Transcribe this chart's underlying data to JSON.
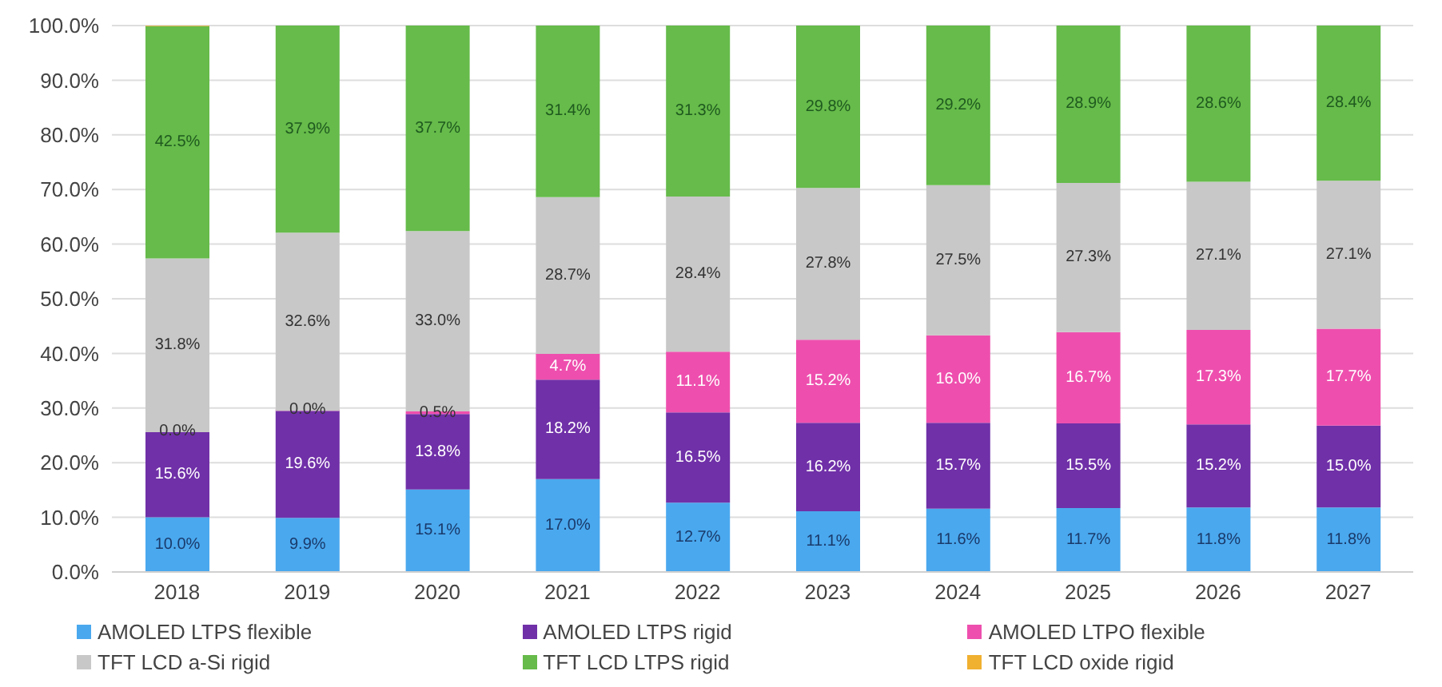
{
  "chart_data": {
    "type": "bar",
    "stacked": true,
    "categories": [
      "2018",
      "2019",
      "2020",
      "2021",
      "2022",
      "2023",
      "2024",
      "2025",
      "2026",
      "2027"
    ],
    "series": [
      {
        "name": "AMOLED LTPS flexible",
        "color": "#4aa8ee",
        "values": [
          10.0,
          9.9,
          15.1,
          17.0,
          12.7,
          11.1,
          11.6,
          11.7,
          11.8,
          11.8
        ],
        "value_labels": [
          "10.0%",
          "9.9%",
          "15.1%",
          "17.0%",
          "12.7%",
          "11.1%",
          "11.6%",
          "11.7%",
          "11.8%",
          "11.8%"
        ]
      },
      {
        "name": "AMOLED LTPS rigid",
        "color": "#7030a8",
        "values": [
          15.6,
          19.6,
          13.8,
          18.2,
          16.5,
          16.2,
          15.7,
          15.5,
          15.2,
          15.0
        ],
        "value_labels": [
          "15.6%",
          "19.6%",
          "13.8%",
          "18.2%",
          "16.5%",
          "16.2%",
          "15.7%",
          "15.5%",
          "15.2%",
          "15.0%"
        ]
      },
      {
        "name": "AMOLED LTPO flexible",
        "color": "#ee4fae",
        "values": [
          0.0,
          0.0,
          0.5,
          4.7,
          11.1,
          15.2,
          16.0,
          16.7,
          17.3,
          17.7
        ],
        "value_labels": [
          "0.0%",
          "0.0%",
          "0.5%",
          "4.7%",
          "11.1%",
          "15.2%",
          "16.0%",
          "16.7%",
          "17.3%",
          "17.7%"
        ]
      },
      {
        "name": "TFT LCD a-Si rigid",
        "color": "#c8c8c8",
        "values": [
          31.8,
          32.6,
          33.0,
          28.7,
          28.4,
          27.8,
          27.5,
          27.3,
          27.1,
          27.1
        ],
        "value_labels": [
          "31.8%",
          "32.6%",
          "33.0%",
          "28.7%",
          "28.4%",
          "27.8%",
          "27.5%",
          "27.3%",
          "27.1%",
          "27.1%"
        ]
      },
      {
        "name": "TFT LCD LTPS rigid",
        "color": "#66bb4a",
        "values": [
          42.5,
          37.9,
          37.7,
          31.4,
          31.3,
          29.8,
          29.2,
          28.9,
          28.6,
          28.4
        ],
        "value_labels": [
          "42.5%",
          "37.9%",
          "37.7%",
          "31.4%",
          "31.3%",
          "29.8%",
          "29.2%",
          "28.9%",
          "28.6%",
          "28.4%"
        ]
      },
      {
        "name": "TFT LCD oxide rigid",
        "color": "#f0b030",
        "values": [
          0.1,
          0.1,
          0.1,
          0,
          0,
          0,
          0,
          0,
          0,
          0
        ]
      }
    ],
    "ylim": [
      0,
      100
    ],
    "yticks": [
      {
        "value": 0,
        "label": "0.0%"
      },
      {
        "value": 10,
        "label": "10.0%"
      },
      {
        "value": 20,
        "label": "20.0%"
      },
      {
        "value": 30,
        "label": "30.0%"
      },
      {
        "value": 40,
        "label": "40.0%"
      },
      {
        "value": 50,
        "label": "50.0%"
      },
      {
        "value": 60,
        "label": "60.0%"
      },
      {
        "value": 70,
        "label": "70.0%"
      },
      {
        "value": 80,
        "label": "80.0%"
      },
      {
        "value": 90,
        "label": "90.0%"
      },
      {
        "value": 100,
        "label": "100.0%"
      }
    ],
    "grid": "y",
    "legend": "bottom"
  }
}
